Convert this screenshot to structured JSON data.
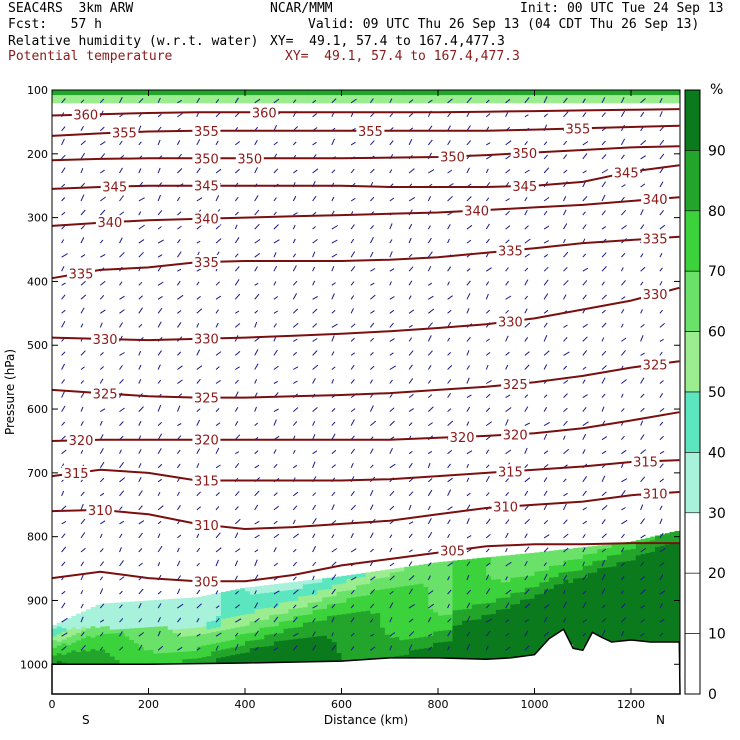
{
  "header": {
    "line1_left": "SEAC4RS  3km ARW",
    "line1_center": "NCAR/MMM",
    "line1_right": "Init: 00 UTC Tue 24 Sep 13",
    "line2_left": "Fcst:   57 h",
    "line2_right": "Valid: 09 UTC Thu 26 Sep 13 (04 CDT Thu 26 Sep 13)",
    "line3_left": "Relative humidity (w.r.t. water)",
    "line3_right": "XY=  49.1, 57.4 to 167.4,477.3",
    "line4_left": "Potential temperature",
    "line4_right": "XY=  49.1, 57.4 to 167.4,477.3"
  },
  "chart_data": {
    "type": "heatmap",
    "title": "Relative humidity (w.r.t. water)",
    "overlay": "Potential temperature",
    "xlabel": "Distance (km)",
    "ylabel": "Pressure (hPa)",
    "xlim": [
      0,
      1300
    ],
    "ylim": [
      1050,
      100
    ],
    "x_ticks": [
      0,
      200,
      400,
      600,
      800,
      1000,
      1200
    ],
    "y_ticks": [
      100,
      200,
      300,
      400,
      500,
      600,
      700,
      800,
      900,
      1000
    ],
    "x_end_labels": {
      "left": "S",
      "right": "N"
    },
    "colorbar": {
      "unit": "%",
      "labels": [
        "90",
        "80",
        "70",
        "60",
        "50",
        "40",
        "30",
        "20",
        "10",
        "0"
      ],
      "bands": [
        {
          "from": 90,
          "to": 100,
          "color": "#0b7a1c"
        },
        {
          "from": 80,
          "to": 90,
          "color": "#23a52b"
        },
        {
          "from": 70,
          "to": 80,
          "color": "#3cd23c"
        },
        {
          "from": 60,
          "to": 70,
          "color": "#6ae26a"
        },
        {
          "from": 50,
          "to": 60,
          "color": "#9bed8f"
        },
        {
          "from": 40,
          "to": 50,
          "color": "#5ce6c0"
        },
        {
          "from": 30,
          "to": 40,
          "color": "#a8f2dc"
        },
        {
          "from": 20,
          "to": 30,
          "color": "#ffffff"
        },
        {
          "from": 10,
          "to": 20,
          "color": "#ffffff"
        },
        {
          "from": 0,
          "to": 10,
          "color": "#ffffff"
        }
      ]
    },
    "isentropes": [
      {
        "theta": 305,
        "labels_x": [
          320,
          830
        ],
        "points": [
          [
            0,
            865
          ],
          [
            100,
            855
          ],
          [
            200,
            865
          ],
          [
            300,
            870
          ],
          [
            400,
            870
          ],
          [
            500,
            860
          ],
          [
            600,
            845
          ],
          [
            700,
            835
          ],
          [
            800,
            825
          ],
          [
            900,
            815
          ],
          [
            1000,
            812
          ],
          [
            1100,
            812
          ],
          [
            1200,
            810
          ],
          [
            1300,
            810
          ]
        ]
      },
      {
        "theta": 310,
        "labels_x": [
          100,
          320,
          940,
          1250
        ],
        "points": [
          [
            0,
            760
          ],
          [
            100,
            758
          ],
          [
            200,
            765
          ],
          [
            300,
            780
          ],
          [
            400,
            788
          ],
          [
            500,
            785
          ],
          [
            600,
            780
          ],
          [
            700,
            775
          ],
          [
            800,
            765
          ],
          [
            900,
            755
          ],
          [
            1000,
            750
          ],
          [
            1100,
            745
          ],
          [
            1200,
            735
          ],
          [
            1300,
            730
          ]
        ]
      },
      {
        "theta": 315,
        "labels_x": [
          50,
          320,
          950,
          1230
        ],
        "points": [
          [
            0,
            705
          ],
          [
            100,
            695
          ],
          [
            200,
            700
          ],
          [
            300,
            712
          ],
          [
            400,
            712
          ],
          [
            500,
            712
          ],
          [
            600,
            712
          ],
          [
            700,
            710
          ],
          [
            800,
            705
          ],
          [
            900,
            700
          ],
          [
            1000,
            695
          ],
          [
            1100,
            690
          ],
          [
            1200,
            683
          ],
          [
            1300,
            680
          ]
        ]
      },
      {
        "theta": 320,
        "labels_x": [
          60,
          320,
          850,
          960
        ],
        "points": [
          [
            0,
            650
          ],
          [
            100,
            648
          ],
          [
            200,
            648
          ],
          [
            300,
            648
          ],
          [
            400,
            648
          ],
          [
            500,
            648
          ],
          [
            600,
            648
          ],
          [
            700,
            648
          ],
          [
            800,
            645
          ],
          [
            900,
            642
          ],
          [
            1000,
            638
          ],
          [
            1100,
            630
          ],
          [
            1200,
            618
          ],
          [
            1300,
            605
          ]
        ]
      },
      {
        "theta": 325,
        "labels_x": [
          110,
          320,
          960,
          1250
        ],
        "points": [
          [
            0,
            570
          ],
          [
            100,
            575
          ],
          [
            200,
            580
          ],
          [
            300,
            582
          ],
          [
            400,
            582
          ],
          [
            500,
            580
          ],
          [
            600,
            578
          ],
          [
            700,
            575
          ],
          [
            800,
            570
          ],
          [
            900,
            565
          ],
          [
            1000,
            558
          ],
          [
            1100,
            548
          ],
          [
            1200,
            535
          ],
          [
            1300,
            525
          ]
        ]
      },
      {
        "theta": 330,
        "labels_x": [
          110,
          320,
          950,
          1250
        ],
        "points": [
          [
            0,
            488
          ],
          [
            100,
            490
          ],
          [
            200,
            492
          ],
          [
            300,
            490
          ],
          [
            400,
            488
          ],
          [
            500,
            485
          ],
          [
            600,
            482
          ],
          [
            700,
            478
          ],
          [
            800,
            473
          ],
          [
            900,
            467
          ],
          [
            1000,
            458
          ],
          [
            1100,
            444
          ],
          [
            1200,
            430
          ],
          [
            1300,
            410
          ]
        ]
      },
      {
        "theta": 335,
        "labels_x": [
          60,
          320,
          950,
          1250
        ],
        "points": [
          [
            0,
            395
          ],
          [
            100,
            382
          ],
          [
            200,
            378
          ],
          [
            300,
            370
          ],
          [
            400,
            368
          ],
          [
            500,
            368
          ],
          [
            600,
            368
          ],
          [
            700,
            366
          ],
          [
            800,
            362
          ],
          [
            900,
            355
          ],
          [
            1000,
            348
          ],
          [
            1100,
            340
          ],
          [
            1200,
            335
          ],
          [
            1300,
            330
          ]
        ]
      },
      {
        "theta": 340,
        "labels_x": [
          120,
          320,
          880,
          1250
        ],
        "points": [
          [
            0,
            313
          ],
          [
            100,
            308
          ],
          [
            200,
            304
          ],
          [
            300,
            302
          ],
          [
            400,
            300
          ],
          [
            500,
            298
          ],
          [
            600,
            296
          ],
          [
            700,
            294
          ],
          [
            800,
            292
          ],
          [
            900,
            288
          ],
          [
            1000,
            284
          ],
          [
            1100,
            280
          ],
          [
            1200,
            274
          ],
          [
            1300,
            268
          ]
        ]
      },
      {
        "theta": 345,
        "labels_x": [
          130,
          320,
          980,
          1190
        ],
        "points": [
          [
            0,
            255
          ],
          [
            100,
            252
          ],
          [
            200,
            250
          ],
          [
            300,
            250
          ],
          [
            400,
            250
          ],
          [
            500,
            250
          ],
          [
            600,
            250
          ],
          [
            700,
            252
          ],
          [
            800,
            252
          ],
          [
            900,
            252
          ],
          [
            1000,
            250
          ],
          [
            1100,
            244
          ],
          [
            1200,
            228
          ],
          [
            1300,
            218
          ]
        ]
      },
      {
        "theta": 350,
        "labels_x": [
          320,
          410,
          830,
          980
        ],
        "points": [
          [
            0,
            210
          ],
          [
            100,
            208
          ],
          [
            200,
            207
          ],
          [
            300,
            207
          ],
          [
            400,
            207
          ],
          [
            500,
            207
          ],
          [
            600,
            207
          ],
          [
            700,
            206
          ],
          [
            800,
            205
          ],
          [
            900,
            202
          ],
          [
            1000,
            198
          ],
          [
            1100,
            194
          ],
          [
            1200,
            190
          ],
          [
            1300,
            188
          ]
        ]
      },
      {
        "theta": 355,
        "labels_x": [
          150,
          320,
          660,
          1090
        ],
        "points": [
          [
            0,
            172
          ],
          [
            100,
            168
          ],
          [
            200,
            165
          ],
          [
            300,
            164
          ],
          [
            400,
            164
          ],
          [
            500,
            164
          ],
          [
            600,
            164
          ],
          [
            700,
            164
          ],
          [
            800,
            164
          ],
          [
            900,
            164
          ],
          [
            1000,
            162
          ],
          [
            1100,
            160
          ],
          [
            1200,
            158
          ],
          [
            1300,
            156
          ]
        ]
      },
      {
        "theta": 360,
        "labels_x": [
          70,
          440
        ],
        "points": [
          [
            0,
            140
          ],
          [
            100,
            138
          ],
          [
            200,
            136
          ],
          [
            300,
            135
          ],
          [
            400,
            135
          ],
          [
            500,
            135
          ],
          [
            600,
            135
          ],
          [
            700,
            135
          ],
          [
            800,
            135
          ],
          [
            900,
            134
          ],
          [
            1000,
            133
          ],
          [
            1100,
            132
          ],
          [
            1200,
            131
          ],
          [
            1300,
            130
          ]
        ]
      }
    ],
    "terrain_surface_hPa": [
      [
        0,
        1000
      ],
      [
        200,
        1000
      ],
      [
        400,
        998
      ],
      [
        600,
        995
      ],
      [
        700,
        990
      ],
      [
        800,
        990
      ],
      [
        900,
        992
      ],
      [
        950,
        990
      ],
      [
        1000,
        985
      ],
      [
        1030,
        960
      ],
      [
        1060,
        945
      ],
      [
        1080,
        975
      ],
      [
        1100,
        978
      ],
      [
        1120,
        950
      ],
      [
        1140,
        958
      ],
      [
        1160,
        965
      ],
      [
        1200,
        962
      ],
      [
        1240,
        965
      ],
      [
        1300,
        965
      ]
    ]
  }
}
